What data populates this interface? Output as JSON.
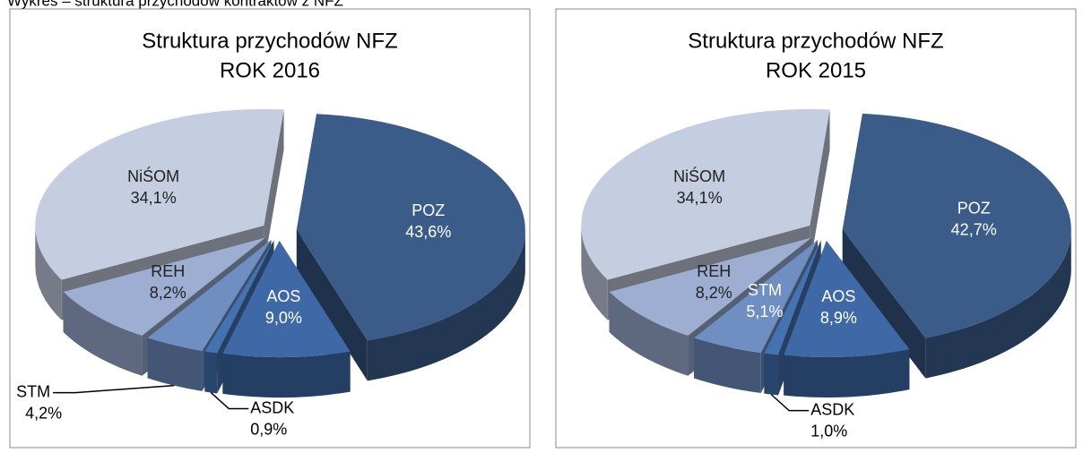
{
  "caption": "Wykres – struktura przychodów kontraktów z NFZ",
  "chart_data": [
    {
      "type": "pie",
      "title": "Struktura przychodów NFZ",
      "subtitle": "ROK 2016",
      "categories": [
        "POZ",
        "AOS",
        "ASDK",
        "STM",
        "REH",
        "NiŚOM"
      ],
      "values": [
        43.6,
        9.0,
        0.9,
        4.2,
        8.2,
        34.1
      ],
      "value_labels": [
        "43,6%",
        "9,0%",
        "0,9%",
        "4,2%",
        "8,2%",
        "34,1%"
      ],
      "colors": [
        "#3b5b88",
        "#3e69a6",
        "#4573b2",
        "#6f8fc3",
        "#9daed2",
        "#c5cde1"
      ]
    },
    {
      "type": "pie",
      "title": "Struktura przychodów NFZ",
      "subtitle": "ROK 2015",
      "categories": [
        "POZ",
        "AOS",
        "ASDK",
        "STM",
        "REH",
        "NiŚOM"
      ],
      "values": [
        42.7,
        8.9,
        1.0,
        5.1,
        8.2,
        34.1
      ],
      "value_labels": [
        "42,7%",
        "8,9%",
        "1,0%",
        "5,1%",
        "8,2%",
        "34,1%"
      ],
      "colors": [
        "#3b5b88",
        "#3e69a6",
        "#4573b2",
        "#6f8fc3",
        "#9daed2",
        "#c5cde1"
      ]
    }
  ]
}
